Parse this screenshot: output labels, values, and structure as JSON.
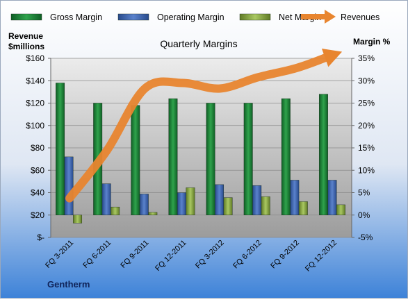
{
  "chart_data": {
    "type": "bar",
    "title": "Quarterly Margins",
    "left_axis_title": [
      "Revenue",
      "$millions"
    ],
    "right_axis_title": "Margin %",
    "footer": "Gentherm",
    "categories": [
      "FQ 3-2011",
      "FQ 6-2011",
      "FQ 9-2011",
      "FQ 12-2011",
      "FQ 3-2012",
      "FQ 6-2012",
      "FQ 9-2012",
      "FQ 12-2012"
    ],
    "y_left": {
      "min": 0,
      "max": 160,
      "step": 20,
      "tick_labels": [
        "$-",
        "$20",
        "$40",
        "$60",
        "$80",
        "$100",
        "$120",
        "$140",
        "$160"
      ]
    },
    "y_right": {
      "min": -5,
      "max": 35,
      "step": 5,
      "tick_labels": [
        "-5%",
        "0%",
        "5%",
        "10%",
        "15%",
        "20%",
        "25%",
        "30%",
        "35%"
      ]
    },
    "series": [
      {
        "name": "Gross Margin",
        "type": "bar",
        "axis": "right",
        "color": "#1f8a3c",
        "values": [
          29.5,
          25.0,
          24.5,
          26.0,
          25.0,
          25.0,
          26.0,
          27.0
        ]
      },
      {
        "name": "Operating Margin",
        "type": "bar",
        "axis": "right",
        "color": "#3f63b0",
        "values": [
          13.0,
          7.0,
          4.7,
          5.0,
          6.8,
          6.6,
          7.8,
          7.8
        ]
      },
      {
        "name": "Net Margin",
        "type": "bar",
        "axis": "right",
        "color": "#8fb04a",
        "values": [
          -1.8,
          1.8,
          0.6,
          6.1,
          3.9,
          4.1,
          3.0,
          2.3
        ]
      },
      {
        "name": "Revenues",
        "type": "line",
        "axis": "left",
        "color": "#e8852f",
        "values": [
          35,
          78,
          133,
          138,
          133,
          143,
          151,
          163
        ]
      }
    ],
    "legend_position": "top",
    "grid": true
  }
}
